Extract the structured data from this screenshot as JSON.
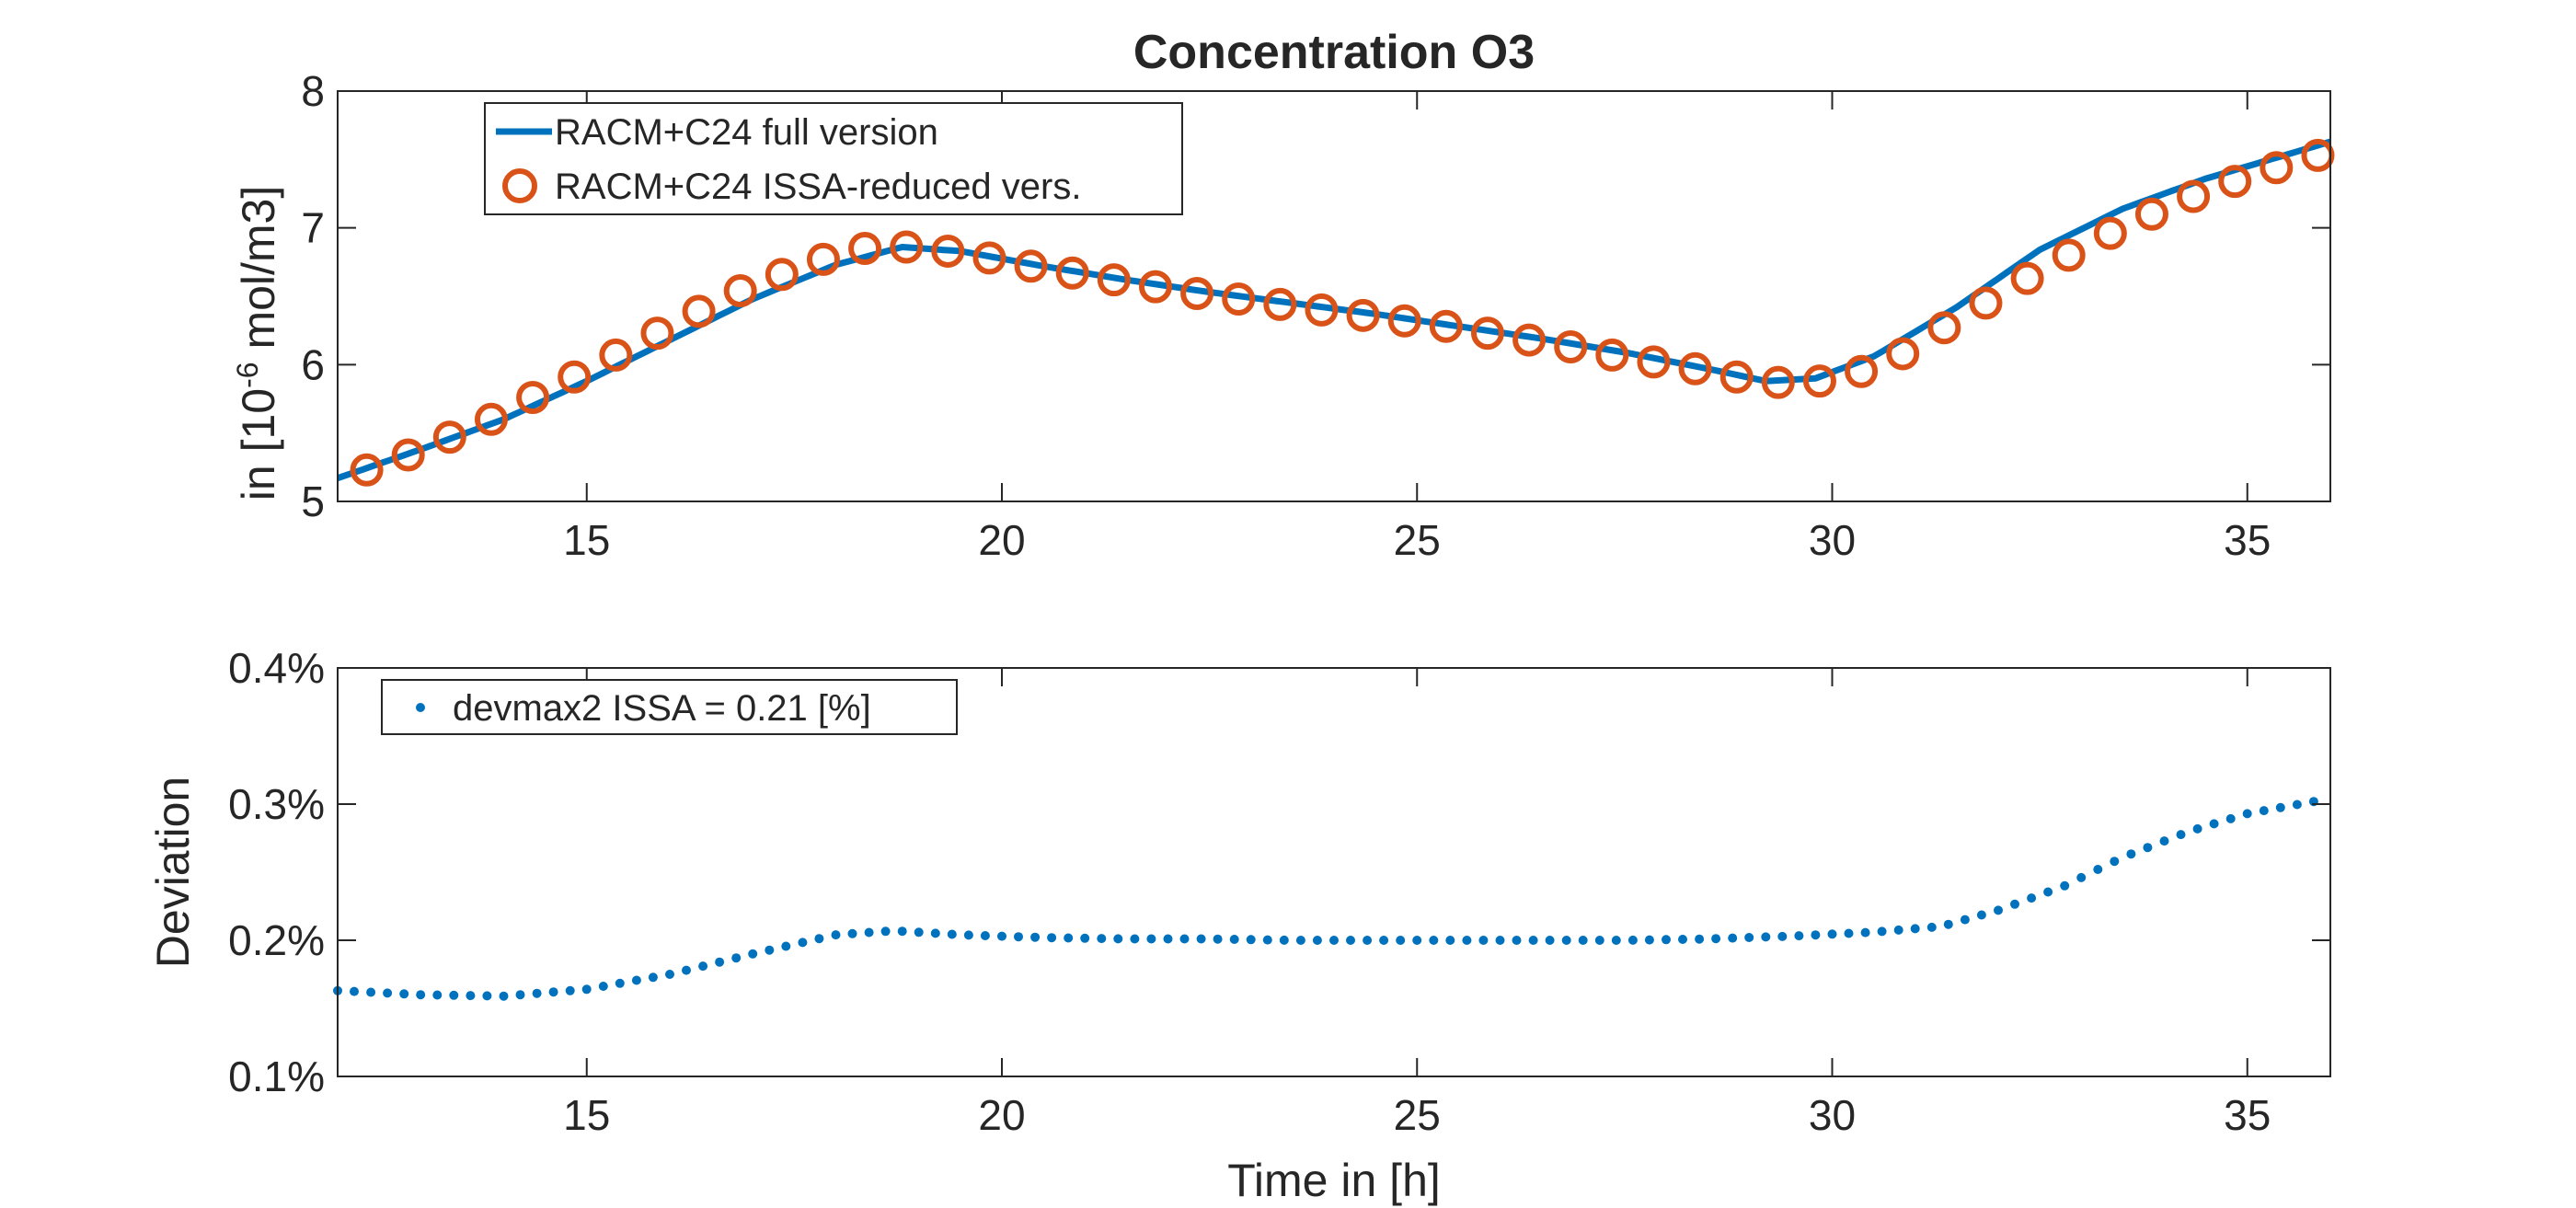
{
  "colors": {
    "full": "#0072BD",
    "reduced": "#D95319",
    "deviation": "#0072BD",
    "axis": "#262626",
    "background": "#ffffff"
  },
  "chart_data": [
    {
      "type": "line",
      "title": "Concentration O3",
      "xlabel": "",
      "ylabel_prefix": "in [10",
      "ylabel_exponent": "-6",
      "ylabel_suffix": " mol/m3]",
      "xlim": [
        12,
        36
      ],
      "ylim": [
        5,
        8
      ],
      "xticks": [
        15,
        20,
        25,
        30,
        35
      ],
      "yticks": [
        5,
        6,
        7,
        8
      ],
      "legend_location": "top-left",
      "grid": false,
      "series": [
        {
          "name": "RACM+C24 full version",
          "style": "line",
          "x": [
            12,
            13,
            14,
            15,
            16,
            17,
            18,
            18.8,
            19.5,
            20.5,
            21.5,
            22.5,
            23.5,
            24.5,
            25.5,
            26.5,
            27.5,
            28.5,
            29.2,
            29.8,
            30.5,
            31.5,
            32.5,
            33.5,
            34.5,
            35.5,
            36
          ],
          "y": [
            5.17,
            5.38,
            5.6,
            5.88,
            6.18,
            6.48,
            6.73,
            6.86,
            6.83,
            6.72,
            6.62,
            6.53,
            6.45,
            6.37,
            6.28,
            6.19,
            6.09,
            5.97,
            5.88,
            5.9,
            6.06,
            6.42,
            6.84,
            7.14,
            7.36,
            7.54,
            7.63
          ]
        },
        {
          "name": "RACM+C24 ISSA-reduced vers.",
          "style": "markers",
          "x": [
            12.35,
            12.85,
            13.35,
            13.85,
            14.35,
            14.85,
            15.35,
            15.85,
            16.35,
            16.85,
            17.35,
            17.85,
            18.35,
            18.85,
            19.35,
            19.85,
            20.35,
            20.85,
            21.35,
            21.85,
            22.35,
            22.85,
            23.35,
            23.85,
            24.35,
            24.85,
            25.35,
            25.85,
            26.35,
            26.85,
            27.35,
            27.85,
            28.35,
            28.85,
            29.35,
            29.85,
            30.35,
            30.85,
            31.35,
            31.85,
            32.35,
            32.85,
            33.35,
            33.85,
            34.35,
            34.85,
            35.35,
            35.85
          ],
          "y": [
            5.23,
            5.34,
            5.47,
            5.6,
            5.76,
            5.91,
            6.07,
            6.23,
            6.39,
            6.54,
            6.66,
            6.77,
            6.85,
            6.86,
            6.83,
            6.78,
            6.72,
            6.67,
            6.62,
            6.57,
            6.52,
            6.48,
            6.44,
            6.4,
            6.36,
            6.32,
            6.28,
            6.23,
            6.18,
            6.13,
            6.07,
            6.02,
            5.97,
            5.91,
            5.87,
            5.88,
            5.95,
            6.08,
            6.27,
            6.45,
            6.63,
            6.8,
            6.96,
            7.1,
            7.23,
            7.34,
            7.44,
            7.53
          ]
        }
      ]
    },
    {
      "type": "scatter",
      "title": "",
      "xlabel": "Time in [h]",
      "ylabel": "Deviation",
      "xlim": [
        12,
        36
      ],
      "ylim": [
        0.1,
        0.4
      ],
      "xticks": [
        15,
        20,
        25,
        30,
        35
      ],
      "yticks": [
        0.1,
        0.2,
        0.3,
        0.4
      ],
      "ytick_labels": [
        "0.1%",
        "0.2%",
        "0.3%",
        "0.4%"
      ],
      "legend_location": "top-left",
      "grid": false,
      "series": [
        {
          "name": "devmax2 ISSA = 0.21 [%]",
          "style": "dots",
          "x": [
            12,
            13,
            14,
            15,
            16,
            17,
            18,
            18.7,
            19.5,
            20.5,
            21.5,
            22.5,
            23.5,
            24.5,
            25.5,
            26.5,
            27.5,
            28.5,
            29.5,
            30.5,
            31.3,
            32,
            32.8,
            33.5,
            34.3,
            35,
            35.9
          ],
          "y": [
            0.163,
            0.16,
            0.159,
            0.164,
            0.175,
            0.19,
            0.204,
            0.207,
            0.204,
            0.202,
            0.201,
            0.201,
            0.2,
            0.2,
            0.2,
            0.2,
            0.2,
            0.201,
            0.203,
            0.206,
            0.21,
            0.222,
            0.24,
            0.261,
            0.28,
            0.293,
            0.303
          ]
        }
      ]
    }
  ]
}
